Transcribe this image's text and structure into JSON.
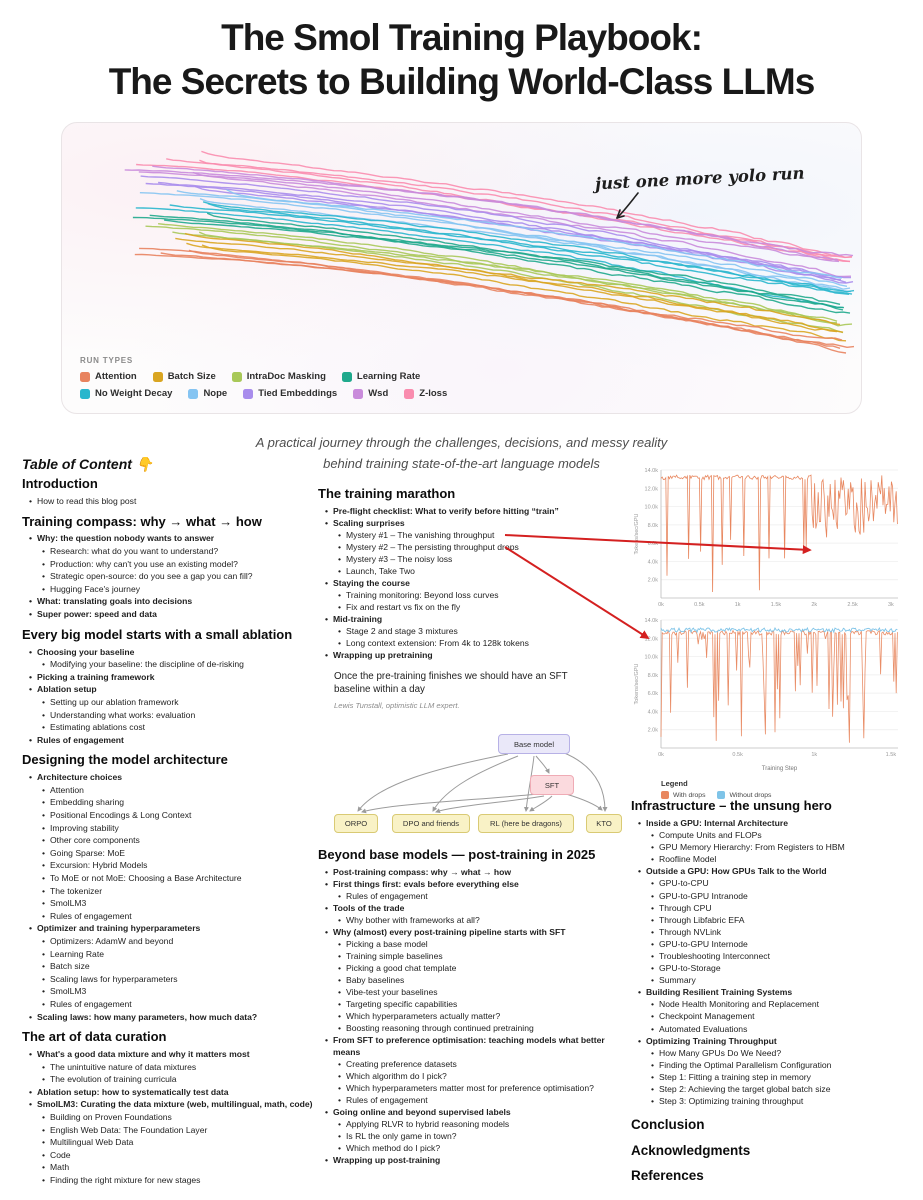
{
  "page": {
    "title_line1": "The Smol Training Playbook:",
    "title_line2": "The Secrets to Building World-Class LLMs",
    "subtitle_line1": "A practical journey through the challenges, decisions, and messy reality",
    "subtitle_line2": "behind training state-of-the-art language models"
  },
  "hero": {
    "annotation": "just one more yolo run",
    "legend_title": "RUN TYPES",
    "legend": [
      {
        "label": "Attention",
        "color": "#e8835f"
      },
      {
        "label": "Batch Size",
        "color": "#d9a521"
      },
      {
        "label": "IntraDoc Masking",
        "color": "#a8c858"
      },
      {
        "label": "Learning Rate",
        "color": "#1fa98c"
      },
      {
        "label": "No Weight Decay",
        "color": "#29b6cd"
      },
      {
        "label": "Nope",
        "color": "#85c4f2"
      },
      {
        "label": "Tied Embeddings",
        "color": "#a88cec"
      },
      {
        "label": "Wsd",
        "color": "#c98bdb"
      },
      {
        "label": "Z-loss",
        "color": "#f98cae"
      }
    ]
  },
  "toc": {
    "title": "Table of Content 👇",
    "columns": {
      "left": [
        {
          "h": "Introduction",
          "items": [
            [
              "How to read this blog post",
              1,
              0
            ]
          ]
        },
        {
          "h": "Training compass: why → what → how",
          "items": [
            [
              "Why: the question nobody wants to answer",
              1,
              1
            ],
            [
              "Research: what do you want to understand?",
              2,
              0
            ],
            [
              "Production: why can't you use an existing model?",
              2,
              0
            ],
            [
              "Strategic open-source: do you see a gap you can fill?",
              2,
              0
            ],
            [
              "Hugging Face's journey",
              2,
              0
            ],
            [
              "What: translating goals into decisions",
              1,
              1
            ],
            [
              "Super power: speed and data",
              1,
              1
            ]
          ]
        },
        {
          "h": "Every big model starts with a small ablation",
          "items": [
            [
              "Choosing your baseline",
              1,
              1
            ],
            [
              "Modifying your baseline: the discipline of de-risking",
              2,
              0
            ],
            [
              "Picking a training framework",
              1,
              1
            ],
            [
              "Ablation setup",
              1,
              1
            ],
            [
              "Setting up our ablation framework",
              2,
              0
            ],
            [
              "Understanding what works: evaluation",
              2,
              0
            ],
            [
              "Estimating ablations cost",
              2,
              0
            ],
            [
              "Rules of engagement",
              1,
              1
            ]
          ]
        },
        {
          "h": "Designing the model architecture",
          "items": [
            [
              "Architecture choices",
              1,
              1
            ],
            [
              "Attention",
              2,
              0
            ],
            [
              "Embedding sharing",
              2,
              0
            ],
            [
              "Positional Encodings & Long Context",
              2,
              0
            ],
            [
              "Improving stability",
              2,
              0
            ],
            [
              "Other core components",
              2,
              0
            ],
            [
              "Going Sparse: MoE",
              2,
              0
            ],
            [
              "Excursion: Hybrid Models",
              2,
              0
            ],
            [
              "To MoE or not MoE: Choosing a Base Architecture",
              2,
              0
            ],
            [
              "The tokenizer",
              2,
              0
            ],
            [
              "SmolLM3",
              2,
              0
            ],
            [
              "Rules of engagement",
              2,
              0
            ],
            [
              "Optimizer and training hyperparameters",
              1,
              1
            ],
            [
              "Optimizers: AdamW and beyond",
              2,
              0
            ],
            [
              "Learning Rate",
              2,
              0
            ],
            [
              "Batch size",
              2,
              0
            ],
            [
              "Scaling laws for hyperparameters",
              2,
              0
            ],
            [
              "SmolLM3",
              2,
              0
            ],
            [
              "Rules of engagement",
              2,
              0
            ],
            [
              "Scaling laws: how many parameters, how much data?",
              1,
              1
            ]
          ]
        },
        {
          "h": "The art of data curation",
          "items": [
            [
              "What's a good data mixture and why it matters most",
              1,
              1
            ],
            [
              "The unintuitive nature of data mixtures",
              2,
              0
            ],
            [
              "The evolution of training curricula",
              2,
              0
            ],
            [
              "Ablation setup: how to systematically test data",
              1,
              1
            ],
            [
              "SmolLM3: Curating the data mixture (web, multilingual, math, code)",
              1,
              1
            ],
            [
              "Building on Proven Foundations",
              2,
              0
            ],
            [
              "English Web Data: The Foundation Layer",
              2,
              0
            ],
            [
              "Multilingual Web Data",
              2,
              0
            ],
            [
              "Code",
              2,
              0
            ],
            [
              "Math",
              2,
              0
            ],
            [
              "Finding the right mixture for new stages",
              2,
              0
            ]
          ]
        }
      ],
      "middle_top": [
        {
          "h": "The training marathon",
          "items": [
            [
              "Pre-flight checklist: What to verify before hitting “train”",
              1,
              1
            ],
            [
              "Scaling surprises",
              1,
              1
            ],
            [
              "Mystery #1 – The vanishing throughput",
              2,
              0
            ],
            [
              "Mystery #2 – The persisting throughput drops",
              2,
              0
            ],
            [
              "Mystery #3 – The noisy loss",
              2,
              0
            ],
            [
              "Launch, Take Two",
              2,
              0
            ],
            [
              "Staying the course",
              1,
              1
            ],
            [
              "Training monitoring: Beyond loss curves",
              2,
              0
            ],
            [
              "Fix and restart vs fix on the fly",
              2,
              0
            ],
            [
              "Mid-training",
              1,
              1
            ],
            [
              "Stage 2 and stage 3 mixtures",
              2,
              0
            ],
            [
              "Long context extension: From 4k to 128k tokens",
              2,
              0
            ],
            [
              "Wrapping up pretraining",
              1,
              1
            ]
          ]
        }
      ],
      "middle_bottom": [
        {
          "h": "Beyond base models — post-training in 2025",
          "items": [
            [
              "Post-training compass: why → what → how",
              1,
              1
            ],
            [
              "First things first: evals before everything else",
              1,
              1
            ],
            [
              "Rules of engagement",
              2,
              0
            ],
            [
              "Tools of the trade",
              1,
              1
            ],
            [
              "Why bother with frameworks at all?",
              2,
              0
            ],
            [
              "Why (almost) every post-training pipeline starts with SFT",
              1,
              1
            ],
            [
              "Picking a base model",
              2,
              0
            ],
            [
              "Training simple baselines",
              2,
              0
            ],
            [
              "Picking a good chat template",
              2,
              0
            ],
            [
              "Baby baselines",
              2,
              0
            ],
            [
              "Vibe-test your baselines",
              2,
              0
            ],
            [
              "Targeting specific capabilities",
              2,
              0
            ],
            [
              "Which hyperparameters actually matter?",
              2,
              0
            ],
            [
              "Boosting reasoning through continued pretraining",
              2,
              0
            ],
            [
              "From SFT to preference optimisation: teaching models what better means",
              1,
              1
            ],
            [
              "Creating preference datasets",
              2,
              0
            ],
            [
              "Which algorithm do I pick?",
              2,
              0
            ],
            [
              "Which hyperparameters matter most for preference optimisation?",
              2,
              0
            ],
            [
              "Rules of engagement",
              2,
              0
            ],
            [
              "Going online and beyond supervised labels",
              1,
              1
            ],
            [
              "Applying RLVR to hybrid reasoning models",
              2,
              0
            ],
            [
              "Is RL the only game in town?",
              2,
              0
            ],
            [
              "Which method do I pick?",
              2,
              0
            ],
            [
              "Wrapping up post-training",
              1,
              1
            ]
          ]
        }
      ],
      "right": [
        {
          "h": "Infrastructure – the unsung hero",
          "items": [
            [
              "Inside a GPU: Internal Architecture",
              1,
              1
            ],
            [
              "Compute Units and FLOPs",
              2,
              0
            ],
            [
              "GPU Memory Hierarchy: From Registers to HBM",
              2,
              0
            ],
            [
              "Roofline Model",
              2,
              0
            ],
            [
              "Outside a GPU: How GPUs Talk to the World",
              1,
              1
            ],
            [
              "GPU-to-CPU",
              2,
              0
            ],
            [
              "GPU-to-GPU Intranode",
              2,
              0
            ],
            [
              "Through CPU",
              2,
              0
            ],
            [
              "Through Libfabric EFA",
              2,
              0
            ],
            [
              "Through NVLink",
              2,
              0
            ],
            [
              "GPU-to-GPU Internode",
              2,
              0
            ],
            [
              "Troubleshooting Interconnect",
              2,
              0
            ],
            [
              "GPU-to-Storage",
              2,
              0
            ],
            [
              "Summary",
              2,
              0
            ],
            [
              "Building Resilient Training Systems",
              1,
              1
            ],
            [
              "Node Health Monitoring and Replacement",
              2,
              0
            ],
            [
              "Checkpoint Management",
              2,
              0
            ],
            [
              "Automated Evaluations",
              2,
              0
            ],
            [
              "Optimizing Training Throughput",
              1,
              1
            ],
            [
              "How Many GPUs Do We Need?",
              2,
              0
            ],
            [
              "Finding the Optimal Parallelism Configuration",
              2,
              0
            ],
            [
              "Step 1: Fitting a training step in memory",
              2,
              0
            ],
            [
              "Step 2: Achieving the target global batch size",
              2,
              0
            ],
            [
              "Step 3: Optimizing training throughput",
              2,
              0
            ]
          ]
        },
        {
          "h": "Conclusion",
          "items": []
        },
        {
          "h": "Acknowledgments",
          "items": []
        },
        {
          "h": "References",
          "items": []
        }
      ]
    }
  },
  "quote": {
    "text": "Once the pre-training finishes we should have an SFT baseline within a day",
    "attribution": "Lewis Tunstall, optimistic LLM expert."
  },
  "diagram": {
    "root_label": "Base model",
    "sft_label": "SFT",
    "leaves": [
      "ORPO",
      "DPO and friends",
      "RL (here be dragons)",
      "KTO"
    ]
  },
  "throughput_charts": {
    "y_axis_title": "Tokens/sec/GPU",
    "x_axis_title": "Training Step",
    "top": {
      "y_ticks": [
        "14.0k",
        "12.0k",
        "10.0k",
        "8.0k",
        "6.0k",
        "4.0k",
        "2.0k"
      ],
      "x_ticks": [
        "0k",
        "0.5k",
        "1k",
        "1.5k",
        "2k",
        "2.5k",
        "3k"
      ]
    },
    "bottom": {
      "y_ticks": [
        "14.0k",
        "12.0k",
        "10.0k",
        "8.0k",
        "6.0k",
        "4.0k",
        "2.0k"
      ],
      "x_ticks": [
        "0k",
        "0.5k",
        "1k",
        "1.5k"
      ]
    },
    "legend_title": "Legend",
    "series": [
      {
        "name": "With drops",
        "color": "#e8875f"
      },
      {
        "name": "Without drops",
        "color": "#7fc4e8"
      }
    ]
  }
}
